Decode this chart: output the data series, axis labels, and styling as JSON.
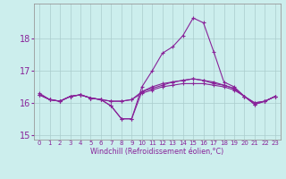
{
  "xlabel": "Windchill (Refroidissement éolien,°C)",
  "background_color": "#cceeed",
  "grid_color": "#aacccc",
  "line_color": "#882299",
  "hours": [
    0,
    1,
    2,
    3,
    4,
    5,
    6,
    7,
    8,
    9,
    10,
    11,
    12,
    13,
    14,
    15,
    16,
    17,
    18,
    19,
    20,
    21,
    22,
    23
  ],
  "line1": [
    16.3,
    16.1,
    16.05,
    16.2,
    16.25,
    16.15,
    16.1,
    15.9,
    15.5,
    15.5,
    16.5,
    17.0,
    17.55,
    17.75,
    18.1,
    18.65,
    18.5,
    17.6,
    16.65,
    16.5,
    16.2,
    15.95,
    16.05,
    16.2
  ],
  "line2": [
    16.25,
    16.1,
    16.05,
    16.2,
    16.25,
    16.15,
    16.1,
    16.05,
    16.05,
    16.1,
    16.35,
    16.45,
    16.55,
    16.65,
    16.7,
    16.75,
    16.7,
    16.6,
    16.55,
    16.45,
    16.2,
    16.0,
    16.05,
    16.2
  ],
  "line3": [
    16.25,
    16.1,
    16.05,
    16.2,
    16.25,
    16.15,
    16.1,
    16.05,
    16.05,
    16.1,
    16.3,
    16.4,
    16.5,
    16.55,
    16.6,
    16.6,
    16.6,
    16.55,
    16.5,
    16.4,
    16.2,
    16.0,
    16.05,
    16.2
  ],
  "line4": [
    16.25,
    16.1,
    16.05,
    16.2,
    16.25,
    16.15,
    16.1,
    15.9,
    15.5,
    15.5,
    16.35,
    16.5,
    16.6,
    16.65,
    16.7,
    16.75,
    16.7,
    16.65,
    16.55,
    16.45,
    16.2,
    15.95,
    16.05,
    16.2
  ],
  "ylim": [
    14.85,
    19.1
  ],
  "yticks": [
    15,
    16,
    17,
    18
  ],
  "xticks": [
    0,
    1,
    2,
    3,
    4,
    5,
    6,
    7,
    8,
    9,
    10,
    11,
    12,
    13,
    14,
    15,
    16,
    17,
    18,
    19,
    20,
    21,
    22,
    23
  ]
}
